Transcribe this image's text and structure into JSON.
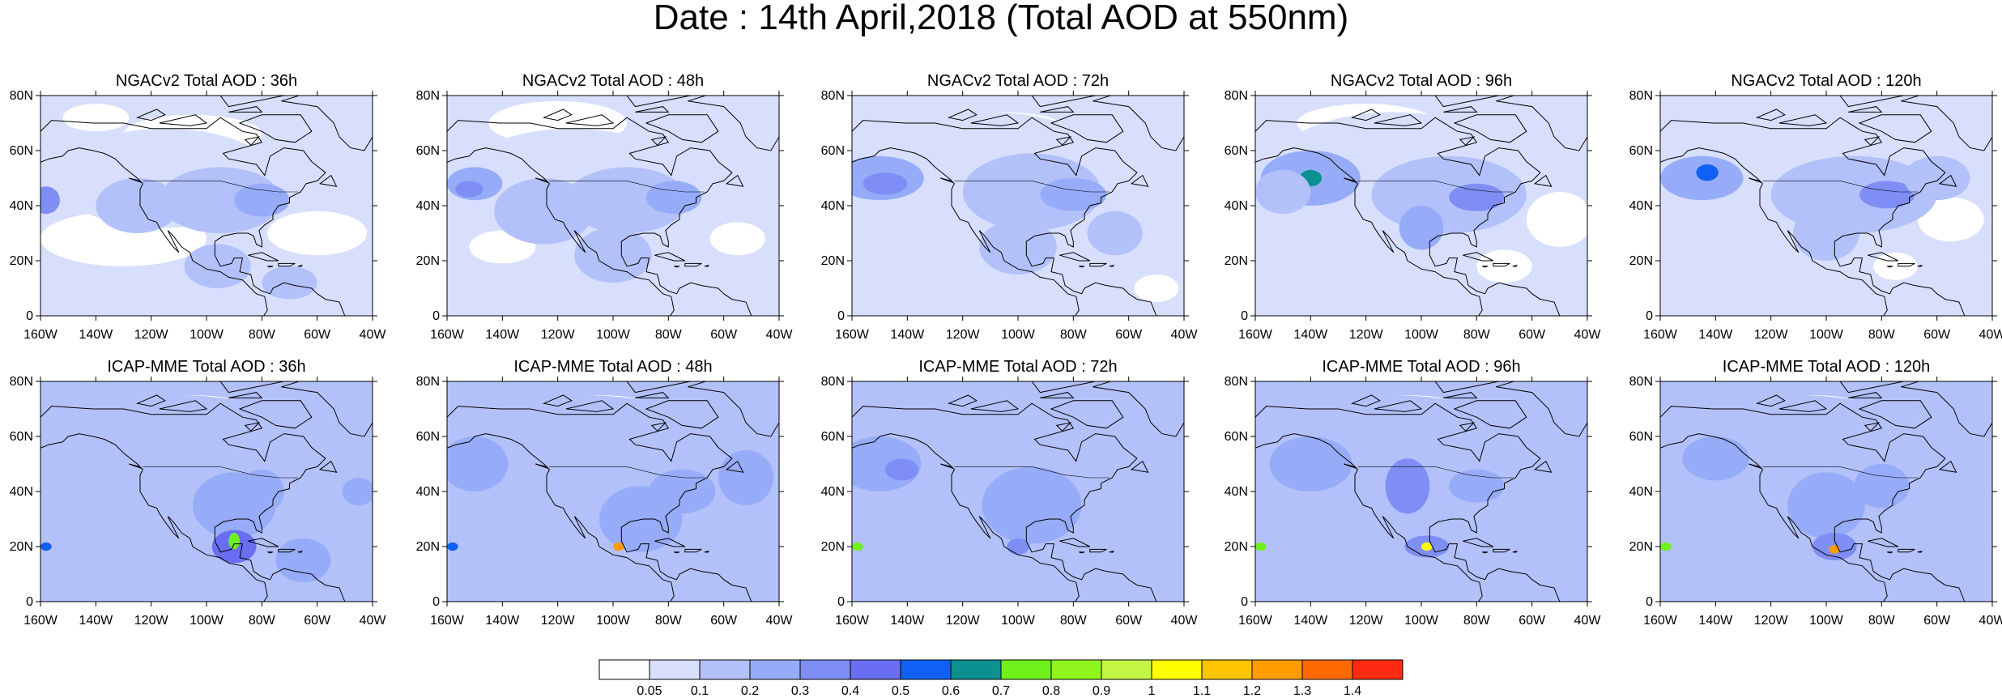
{
  "title": "Date : 14th April,2018 (Total AOD at 550nm)",
  "panels": [
    {
      "title": "NGACv2 Total AOD : 36h"
    },
    {
      "title": "NGACv2 Total AOD : 48h"
    },
    {
      "title": "NGACv2 Total AOD : 72h"
    },
    {
      "title": "NGACv2 Total AOD : 96h"
    },
    {
      "title": "NGACv2 Total AOD : 120h"
    },
    {
      "title": "ICAP-MME Total AOD : 36h"
    },
    {
      "title": "ICAP-MME Total AOD : 48h"
    },
    {
      "title": "ICAP-MME Total AOD : 72h"
    },
    {
      "title": "ICAP-MME Total AOD : 96h"
    },
    {
      "title": "ICAP-MME Total AOD : 120h"
    }
  ],
  "lat_labels": [
    "80N",
    "60N",
    "40N",
    "20N",
    "0"
  ],
  "lon_labels": [
    "160W",
    "140W",
    "120W",
    "100W",
    "80W",
    "60W",
    "40W"
  ],
  "colorbar": {
    "labels": [
      "0.05",
      "0.1",
      "0.2",
      "0.3",
      "0.4",
      "0.5",
      "0.6",
      "0.7",
      "0.8",
      "0.9",
      "1",
      "1.1",
      "1.2",
      "1.3",
      "1.4"
    ],
    "colors": [
      "#ffffff",
      "#d7dffc",
      "#b3c1fa",
      "#97acf8",
      "#7f8ef5",
      "#6a6ef2",
      "#1160f5",
      "#0a9190",
      "#6ef01a",
      "#8ff51d",
      "#c4f542",
      "#ffff00",
      "#ffc400",
      "#ff9d00",
      "#ff6a00",
      "#ff2a12"
    ]
  }
}
